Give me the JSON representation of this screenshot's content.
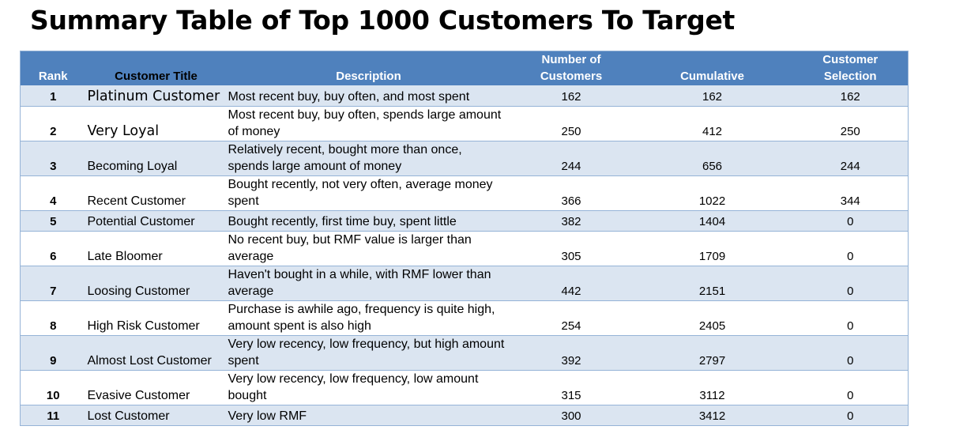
{
  "title": "Summary Table of Top 1000 Customers To Target",
  "headers": {
    "rank": "Rank",
    "customer_title": "Customer Title",
    "description": "Description",
    "number_of_customers": "Number of Customers",
    "cumulative": "Cumulative",
    "customer_selection": "Customer Selection"
  },
  "rows": [
    {
      "rank": "1",
      "title": "Platinum Customer",
      "description": "Most recent buy, buy often, and most spent",
      "number": "162",
      "cumulative": "162",
      "selection": "162"
    },
    {
      "rank": "2",
      "title": "Very Loyal",
      "description": "Most recent buy, buy often, spends large amount of money",
      "number": "250",
      "cumulative": "412",
      "selection": "250"
    },
    {
      "rank": "3",
      "title": "Becoming Loyal",
      "description": "Relatively recent, bought more than once, spends large amount of money",
      "number": "244",
      "cumulative": "656",
      "selection": "244"
    },
    {
      "rank": "4",
      "title": "Recent Customer",
      "description": "Bought recently, not very often, average money spent",
      "number": "366",
      "cumulative": "1022",
      "selection": "344"
    },
    {
      "rank": "5",
      "title": "Potential Customer",
      "description": "Bought recently, first time buy, spent little",
      "number": "382",
      "cumulative": "1404",
      "selection": "0"
    },
    {
      "rank": "6",
      "title": "Late Bloomer",
      "description": "No recent buy, but RMF value is larger than average",
      "number": "305",
      "cumulative": "1709",
      "selection": "0"
    },
    {
      "rank": "7",
      "title": "Loosing Customer",
      "description": "Haven't bought in a while, with RMF lower than average",
      "number": "442",
      "cumulative": "2151",
      "selection": "0"
    },
    {
      "rank": "8",
      "title": "High Risk Customer",
      "description": "Purchase is awhile ago, frequency is quite high, amount spent is also high",
      "number": "254",
      "cumulative": "2405",
      "selection": "0"
    },
    {
      "rank": "9",
      "title": "Almost Lost Customer",
      "description": "Very low recency, low frequency, but high amount spent",
      "number": "392",
      "cumulative": "2797",
      "selection": "0"
    },
    {
      "rank": "10",
      "title": "Evasive Customer",
      "description": "Very low recency, low frequency, low amount bought",
      "number": "315",
      "cumulative": "3112",
      "selection": "0"
    },
    {
      "rank": "11",
      "title": "Lost Customer",
      "description": "Very low RMF",
      "number": "300",
      "cumulative": "3412",
      "selection": "0"
    }
  ],
  "colors": {
    "header_bg": "#4f81bd",
    "band_bg": "#dbe5f1",
    "border": "#95b3d7"
  }
}
